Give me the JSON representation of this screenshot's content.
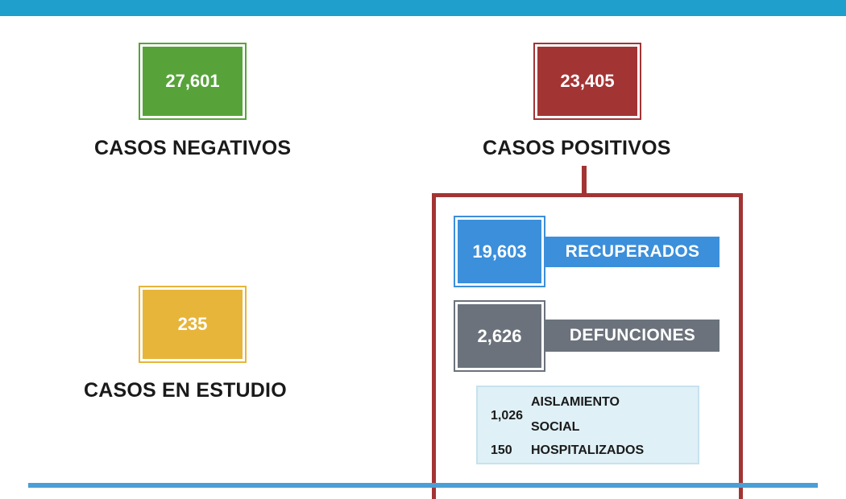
{
  "colors": {
    "negativos": "#57a33a",
    "positivos": "#a33434",
    "en_estudio": "#e7b53a",
    "recuperados": "#3b8fdb",
    "defunciones": "#6b727b",
    "detail_bg": "#dff0f6",
    "header": "#1f9fcc"
  },
  "negativos": {
    "value": "27,601",
    "label": "CASOS NEGATIVOS"
  },
  "positivos": {
    "value": "23,405",
    "label": "CASOS POSITIVOS"
  },
  "en_estudio": {
    "value": "235",
    "label": "CASOS EN ESTUDIO"
  },
  "recuperados": {
    "value": "19,603",
    "label": "RECUPERADOS"
  },
  "defunciones": {
    "value": "2,626",
    "label": "DEFUNCIONES"
  },
  "aislamiento": {
    "value": "1,026",
    "label_line1": "AISLAMIENTO",
    "label_line2": "SOCIAL"
  },
  "hospitalizados": {
    "value": "150",
    "label": "HOSPITALIZADOS"
  }
}
